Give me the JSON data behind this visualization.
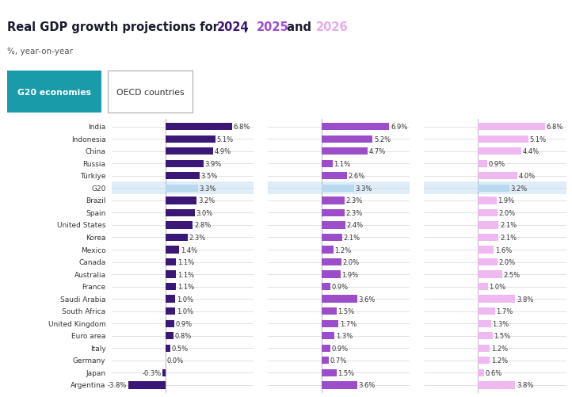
{
  "subtitle": "%, year-on-year",
  "tab1": "G20 economies",
  "tab2": "OECD countries",
  "countries": [
    "India",
    "Indonesia",
    "China",
    "Russia",
    "Türkiye",
    "G20",
    "Brazil",
    "Spain",
    "United States",
    "Korea",
    "Mexico",
    "Canada",
    "Australia",
    "France",
    "Saudi Arabia",
    "South Africa",
    "United Kingdom",
    "Euro area",
    "Italy",
    "Germany",
    "Japan",
    "Argentina"
  ],
  "y2024": [
    6.8,
    5.1,
    4.9,
    3.9,
    3.5,
    3.3,
    3.2,
    3.0,
    2.8,
    2.3,
    1.4,
    1.1,
    1.1,
    1.1,
    1.0,
    1.0,
    0.9,
    0.8,
    0.5,
    0.0,
    -0.3,
    -3.8
  ],
  "y2025": [
    6.9,
    5.2,
    4.7,
    1.1,
    2.6,
    3.3,
    2.3,
    2.3,
    2.4,
    2.1,
    1.2,
    2.0,
    1.9,
    0.9,
    3.6,
    1.5,
    1.7,
    1.3,
    0.9,
    0.7,
    1.5,
    3.6
  ],
  "y2026": [
    6.8,
    5.1,
    4.4,
    0.9,
    4.0,
    3.2,
    1.9,
    2.0,
    2.1,
    2.1,
    1.6,
    2.0,
    2.5,
    1.0,
    3.8,
    1.7,
    1.3,
    1.5,
    1.2,
    1.2,
    0.6,
    3.8
  ],
  "color_2024": "#3b1778",
  "color_2025": "#9b4dca",
  "color_2026": "#f0b8f0",
  "color_g20_bg": "#b8d8f0",
  "color_g20_bar24": "#b8d8f0",
  "color_tab_active_bg": "#1a9baa",
  "color_tab_inactive_border": "#aaaaaa",
  "bar_height": 0.6,
  "figsize": [
    7.22,
    5.02
  ],
  "dpi": 100,
  "title_prefix": "Real GDP growth projections for ",
  "title_2024": "2024",
  "title_mid": ", ",
  "title_2025": "2025",
  "title_and": " and ",
  "title_2026": "2026",
  "title_color_main": "#1a1a2e",
  "title_color_2024": "#3b1778",
  "title_color_2025": "#9b4dca",
  "title_color_2026": "#e8aaee",
  "xlim_min": -5.5,
  "xlim_max": 9.0
}
